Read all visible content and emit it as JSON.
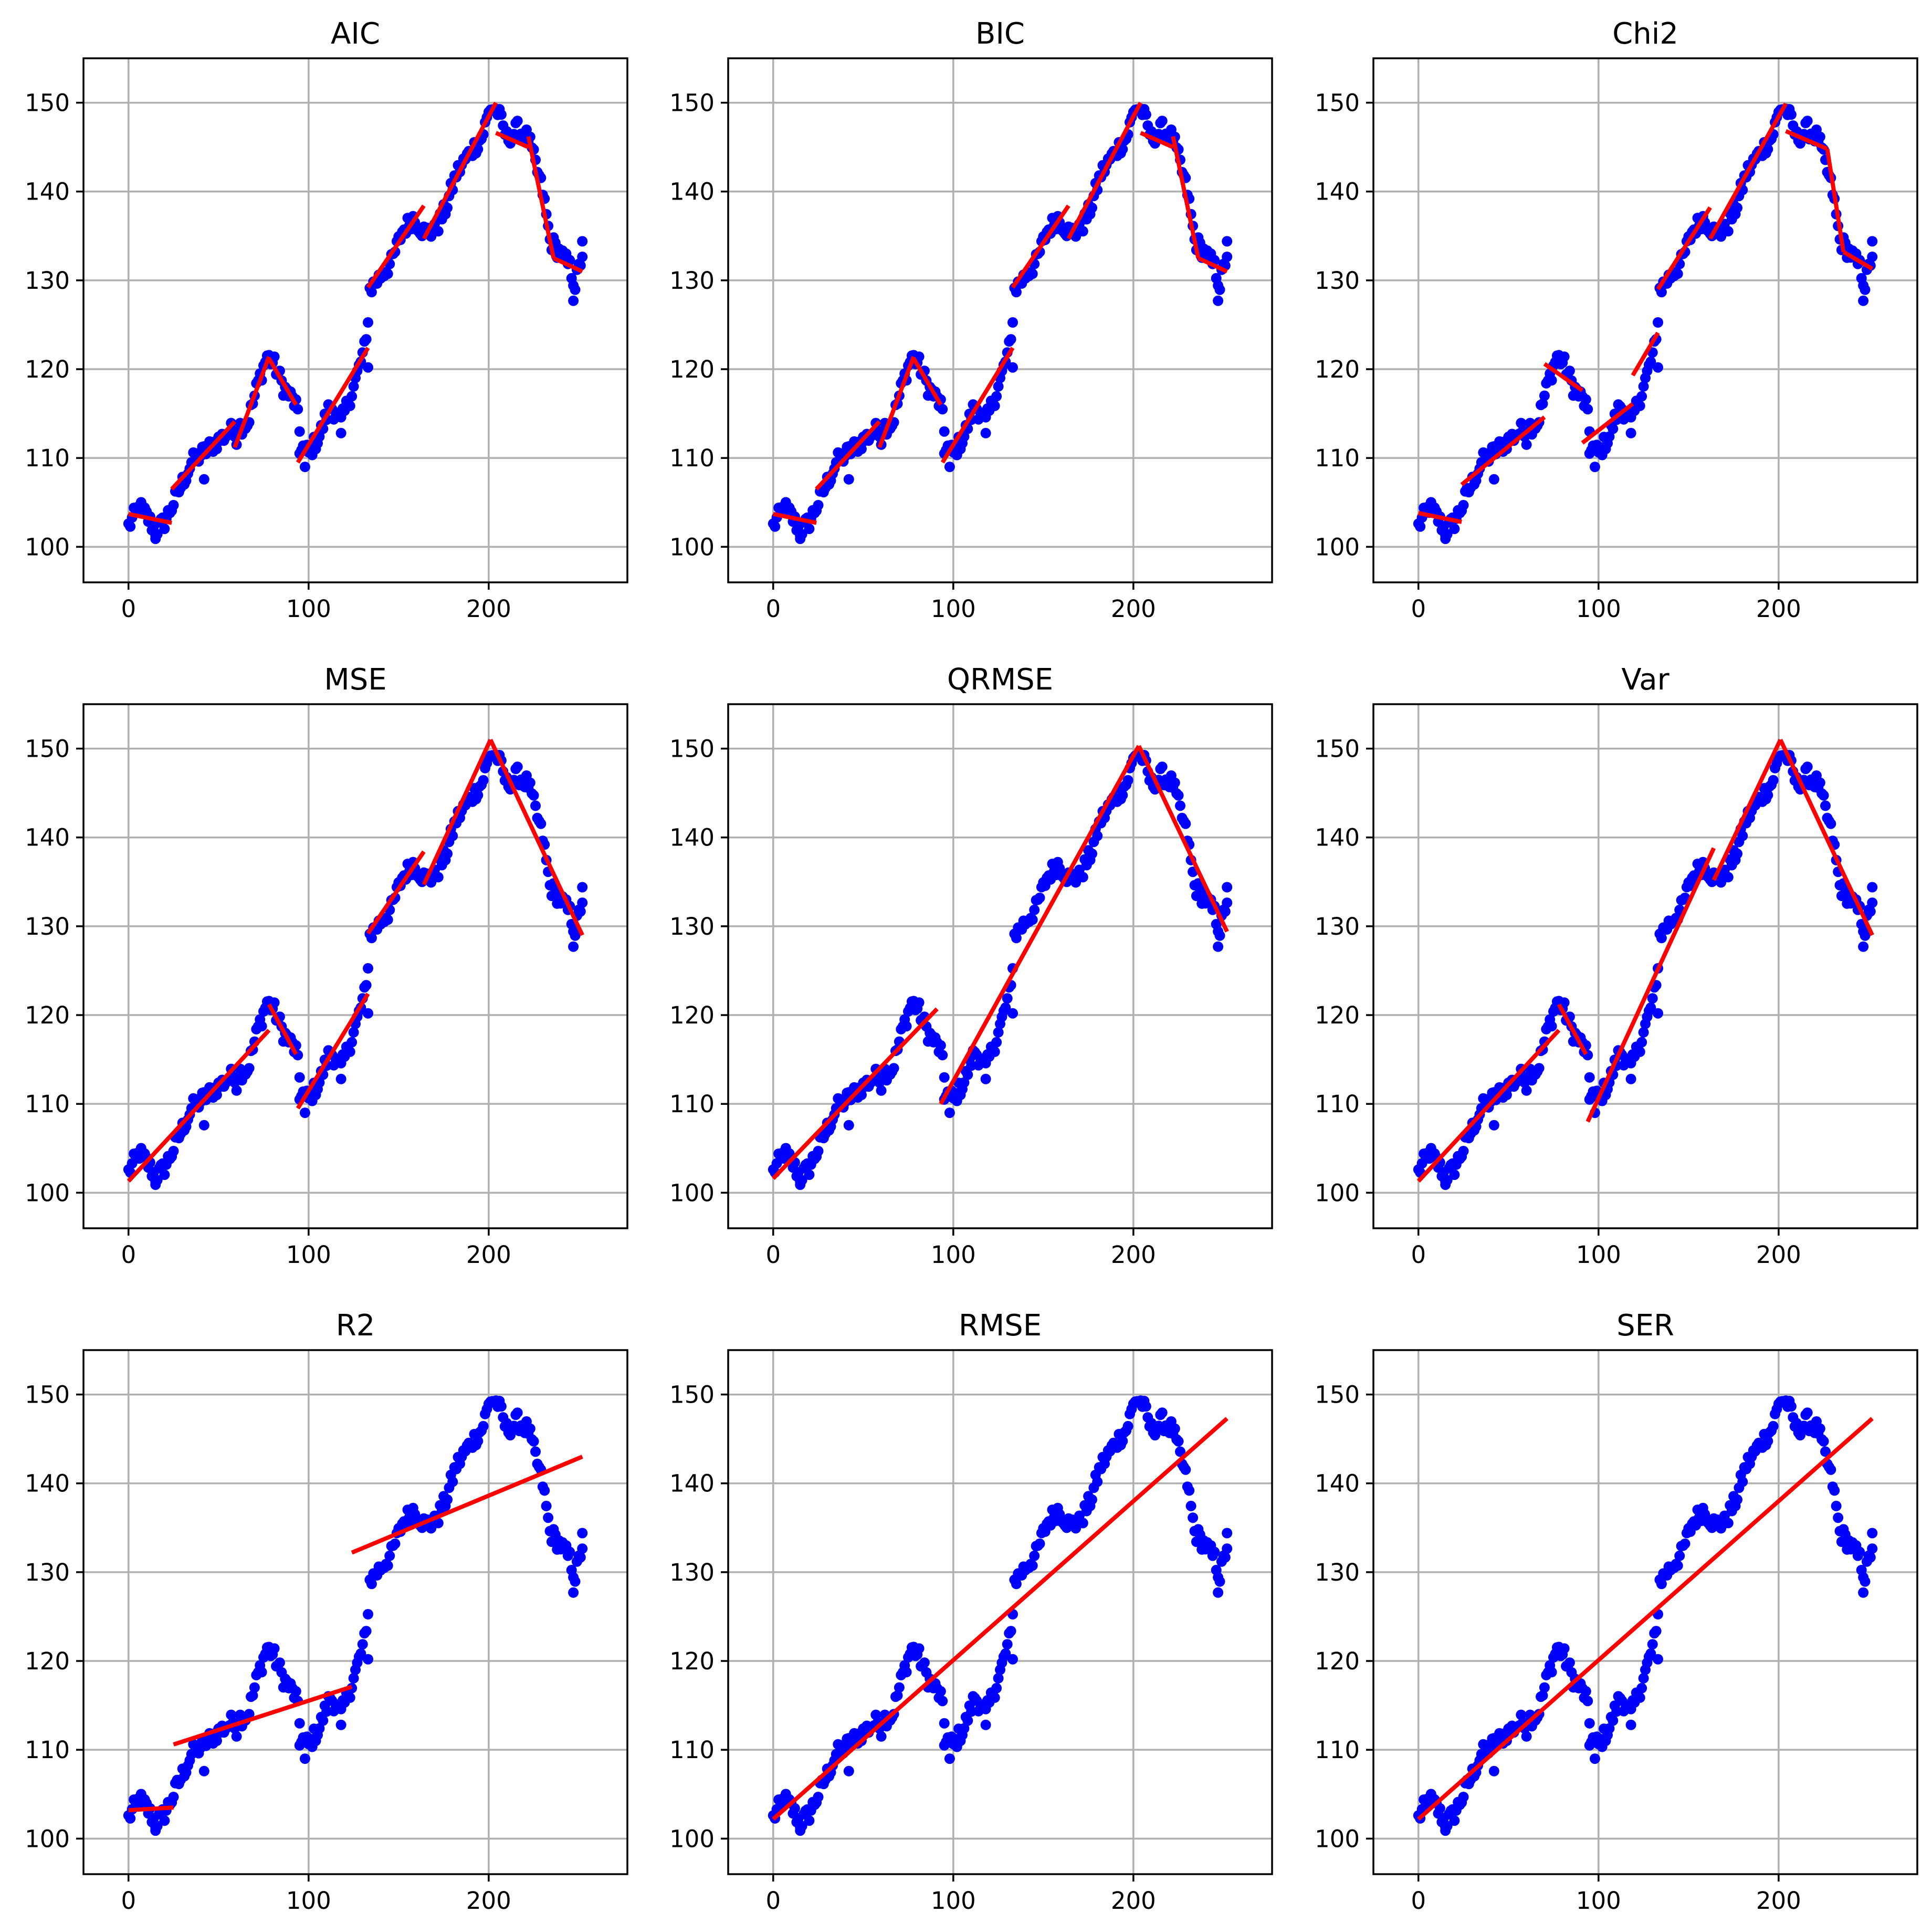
{
  "figure": {
    "panels": [
      "AIC",
      "BIC",
      "Chi2",
      "MSE",
      "QRMSE",
      "Var",
      "R2",
      "RMSE",
      "SER"
    ]
  },
  "chart_data": [
    {
      "type": "scatter",
      "title": "AIC",
      "xlim": [
        -25,
        277
      ],
      "ylim": [
        96,
        155
      ],
      "x_ticks": [
        0,
        100,
        200
      ],
      "y_ticks": [
        100,
        110,
        120,
        130,
        140,
        150
      ],
      "grid": true,
      "point_color": "#0000ff",
      "line_color": "#ff0000",
      "fit_segments": [
        {
          "x": [
            0,
            24
          ],
          "y": [
            103.7,
            102.7
          ]
        },
        {
          "x": [
            24,
            59
          ],
          "y": [
            106.5,
            114.1
          ]
        },
        {
          "x": [
            59,
            78
          ],
          "y": [
            111.2,
            121.4
          ]
        },
        {
          "x": [
            78,
            93
          ],
          "y": [
            121.2,
            116.0
          ]
        },
        {
          "x": [
            94,
            133
          ],
          "y": [
            109.5,
            122.4
          ]
        },
        {
          "x": [
            133,
            164
          ],
          "y": [
            129.2,
            138.4
          ]
        },
        {
          "x": [
            164,
            204
          ],
          "y": [
            134.7,
            150.0
          ]
        },
        {
          "x": [
            204,
            222
          ],
          "y": [
            146.6,
            145.0
          ]
        },
        {
          "x": [
            222,
            236
          ],
          "y": [
            146.2,
            132.5
          ]
        },
        {
          "x": [
            236,
            252
          ],
          "y": [
            132.5,
            131.0
          ]
        }
      ]
    },
    {
      "type": "scatter",
      "title": "BIC",
      "xlim": [
        -25,
        277
      ],
      "ylim": [
        96,
        155
      ],
      "x_ticks": [
        0,
        100,
        200
      ],
      "y_ticks": [
        100,
        110,
        120,
        130,
        140,
        150
      ],
      "grid": true,
      "point_color": "#0000ff",
      "line_color": "#ff0000",
      "fit_segments": [
        {
          "x": [
            0,
            24
          ],
          "y": [
            103.7,
            102.7
          ]
        },
        {
          "x": [
            24,
            59
          ],
          "y": [
            106.5,
            114.1
          ]
        },
        {
          "x": [
            59,
            78
          ],
          "y": [
            111.2,
            121.4
          ]
        },
        {
          "x": [
            78,
            93
          ],
          "y": [
            121.2,
            116.0
          ]
        },
        {
          "x": [
            94,
            133
          ],
          "y": [
            109.5,
            122.4
          ]
        },
        {
          "x": [
            133,
            164
          ],
          "y": [
            129.2,
            138.4
          ]
        },
        {
          "x": [
            164,
            204
          ],
          "y": [
            134.7,
            150.0
          ]
        },
        {
          "x": [
            204,
            222
          ],
          "y": [
            146.6,
            145.0
          ]
        },
        {
          "x": [
            222,
            236
          ],
          "y": [
            146.2,
            132.5
          ]
        },
        {
          "x": [
            236,
            252
          ],
          "y": [
            132.5,
            131.0
          ]
        }
      ]
    },
    {
      "type": "scatter",
      "title": "Chi2",
      "xlim": [
        -25,
        277
      ],
      "ylim": [
        96,
        155
      ],
      "x_ticks": [
        0,
        100,
        200
      ],
      "y_ticks": [
        100,
        110,
        120,
        130,
        140,
        150
      ],
      "grid": true,
      "point_color": "#0000ff",
      "line_color": "#ff0000",
      "fit_segments": [
        {
          "x": [
            0,
            24
          ],
          "y": [
            103.8,
            102.8
          ]
        },
        {
          "x": [
            24,
            70
          ],
          "y": [
            107.0,
            114.6
          ]
        },
        {
          "x": [
            70,
            91
          ],
          "y": [
            120.6,
            117.6
          ]
        },
        {
          "x": [
            91,
            119
          ],
          "y": [
            111.7,
            116.1
          ]
        },
        {
          "x": [
            119,
            133
          ],
          "y": [
            119.3,
            124.1
          ]
        },
        {
          "x": [
            133,
            162
          ],
          "y": [
            129.0,
            138.2
          ]
        },
        {
          "x": [
            162,
            204
          ],
          "y": [
            134.7,
            149.9
          ]
        },
        {
          "x": [
            204,
            227
          ],
          "y": [
            146.8,
            144.8
          ]
        },
        {
          "x": [
            227,
            236
          ],
          "y": [
            144.8,
            133.2
          ]
        },
        {
          "x": [
            236,
            252
          ],
          "y": [
            133.2,
            131.3
          ]
        }
      ]
    },
    {
      "type": "scatter",
      "title": "MSE",
      "xlim": [
        -25,
        277
      ],
      "ylim": [
        96,
        155
      ],
      "x_ticks": [
        0,
        100,
        200
      ],
      "y_ticks": [
        100,
        110,
        120,
        130,
        140,
        150
      ],
      "grid": true,
      "point_color": "#0000ff",
      "line_color": "#ff0000",
      "fit_segments": [
        {
          "x": [
            0,
            78
          ],
          "y": [
            101.3,
            118.3
          ]
        },
        {
          "x": [
            78,
            93
          ],
          "y": [
            121.2,
            115.6
          ]
        },
        {
          "x": [
            94,
            133
          ],
          "y": [
            109.5,
            122.4
          ]
        },
        {
          "x": [
            133,
            164
          ],
          "y": [
            129.2,
            138.4
          ]
        },
        {
          "x": [
            164,
            201
          ],
          "y": [
            134.7,
            151.0
          ]
        },
        {
          "x": [
            201,
            252
          ],
          "y": [
            151.0,
            129.0
          ]
        }
      ]
    },
    {
      "type": "scatter",
      "title": "QRMSE",
      "xlim": [
        -25,
        277
      ],
      "ylim": [
        96,
        155
      ],
      "x_ticks": [
        0,
        100,
        200
      ],
      "y_ticks": [
        100,
        110,
        120,
        130,
        140,
        150
      ],
      "grid": true,
      "point_color": "#0000ff",
      "line_color": "#ff0000",
      "fit_segments": [
        {
          "x": [
            0,
            91
          ],
          "y": [
            101.6,
            120.7
          ]
        },
        {
          "x": [
            93,
            203
          ],
          "y": [
            110.0,
            150.3
          ]
        },
        {
          "x": [
            203,
            252
          ],
          "y": [
            150.3,
            129.4
          ]
        }
      ]
    },
    {
      "type": "scatter",
      "title": "Var",
      "xlim": [
        -25,
        277
      ],
      "ylim": [
        96,
        155
      ],
      "x_ticks": [
        0,
        100,
        200
      ],
      "y_ticks": [
        100,
        110,
        120,
        130,
        140,
        150
      ],
      "grid": true,
      "point_color": "#0000ff",
      "line_color": "#ff0000",
      "fit_segments": [
        {
          "x": [
            0,
            78
          ],
          "y": [
            101.3,
            118.3
          ]
        },
        {
          "x": [
            78,
            93
          ],
          "y": [
            121.2,
            115.6
          ]
        },
        {
          "x": [
            94,
            164
          ],
          "y": [
            108.0,
            138.8
          ]
        },
        {
          "x": [
            164,
            201
          ],
          "y": [
            135.2,
            151.0
          ]
        },
        {
          "x": [
            201,
            252
          ],
          "y": [
            151.0,
            129.0
          ]
        }
      ]
    },
    {
      "type": "scatter",
      "title": "R2",
      "xlim": [
        -25,
        277
      ],
      "ylim": [
        96,
        155
      ],
      "x_ticks": [
        0,
        100,
        200
      ],
      "y_ticks": [
        100,
        110,
        120,
        130,
        140,
        150
      ],
      "grid": true,
      "point_color": "#0000ff",
      "line_color": "#ff0000",
      "fit_segments": [
        {
          "x": [
            0,
            25
          ],
          "y": [
            103.2,
            103.5
          ]
        },
        {
          "x": [
            25,
            124
          ],
          "y": [
            110.6,
            117.1
          ]
        },
        {
          "x": [
            124,
            252
          ],
          "y": [
            132.2,
            143.0
          ]
        }
      ]
    },
    {
      "type": "scatter",
      "title": "RMSE",
      "xlim": [
        -25,
        277
      ],
      "ylim": [
        96,
        155
      ],
      "x_ticks": [
        0,
        100,
        200
      ],
      "y_ticks": [
        100,
        110,
        120,
        130,
        140,
        150
      ],
      "grid": true,
      "point_color": "#0000ff",
      "line_color": "#ff0000",
      "fit_segments": [
        {
          "x": [
            0,
            252
          ],
          "y": [
            102.2,
            147.3
          ]
        }
      ]
    },
    {
      "type": "scatter",
      "title": "SER",
      "xlim": [
        -25,
        277
      ],
      "ylim": [
        96,
        155
      ],
      "x_ticks": [
        0,
        100,
        200
      ],
      "y_ticks": [
        100,
        110,
        120,
        130,
        140,
        150
      ],
      "grid": true,
      "point_color": "#0000ff",
      "line_color": "#ff0000",
      "fit_segments": [
        {
          "x": [
            0,
            252
          ],
          "y": [
            102.2,
            147.3
          ]
        }
      ]
    }
  ],
  "series": {
    "name": "",
    "anchors": [
      {
        "x": 0,
        "y": 102.3
      },
      {
        "x": 6,
        "y": 104.5
      },
      {
        "x": 10,
        "y": 103.5
      },
      {
        "x": 15,
        "y": 101.8
      },
      {
        "x": 20,
        "y": 102.8
      },
      {
        "x": 24,
        "y": 104.5
      },
      {
        "x": 35,
        "y": 109.5
      },
      {
        "x": 50,
        "y": 112.0
      },
      {
        "x": 60,
        "y": 113.5
      },
      {
        "x": 66,
        "y": 113.8
      },
      {
        "x": 72,
        "y": 118.5
      },
      {
        "x": 77,
        "y": 121.5
      },
      {
        "x": 81,
        "y": 120.5
      },
      {
        "x": 86,
        "y": 118.0
      },
      {
        "x": 93,
        "y": 116.0
      },
      {
        "x": 96,
        "y": 111.5
      },
      {
        "x": 100,
        "y": 110.5
      },
      {
        "x": 106,
        "y": 112.5
      },
      {
        "x": 112,
        "y": 116.0
      },
      {
        "x": 118,
        "y": 114.0
      },
      {
        "x": 125,
        "y": 118.0
      },
      {
        "x": 132,
        "y": 123.0
      },
      {
        "x": 134,
        "y": 129.0
      },
      {
        "x": 140,
        "y": 130.5
      },
      {
        "x": 146,
        "y": 132.0
      },
      {
        "x": 152,
        "y": 135.5
      },
      {
        "x": 158,
        "y": 137.0
      },
      {
        "x": 164,
        "y": 135.5
      },
      {
        "x": 170,
        "y": 135.5
      },
      {
        "x": 176,
        "y": 138.0
      },
      {
        "x": 182,
        "y": 142.0
      },
      {
        "x": 190,
        "y": 144.5
      },
      {
        "x": 196,
        "y": 146.0
      },
      {
        "x": 201,
        "y": 149.5
      },
      {
        "x": 205,
        "y": 149.0
      },
      {
        "x": 210,
        "y": 146.0
      },
      {
        "x": 216,
        "y": 147.0
      },
      {
        "x": 222,
        "y": 146.0
      },
      {
        "x": 226,
        "y": 143.0
      },
      {
        "x": 230,
        "y": 140.0
      },
      {
        "x": 234,
        "y": 134.5
      },
      {
        "x": 240,
        "y": 133.0
      },
      {
        "x": 245,
        "y": 131.5
      },
      {
        "x": 248,
        "y": 129.5
      },
      {
        "x": 252,
        "y": 133.0
      }
    ],
    "outliers": [
      {
        "x": 60,
        "y": 111.5
      },
      {
        "x": 95,
        "y": 110.5
      },
      {
        "x": 98,
        "y": 109.0
      },
      {
        "x": 118,
        "y": 112.8
      },
      {
        "x": 133,
        "y": 120.2
      },
      {
        "x": 247,
        "y": 127.7
      },
      {
        "x": 15,
        "y": 100.9
      },
      {
        "x": 42,
        "y": 107.6
      },
      {
        "x": 252,
        "y": 134.4
      }
    ]
  }
}
